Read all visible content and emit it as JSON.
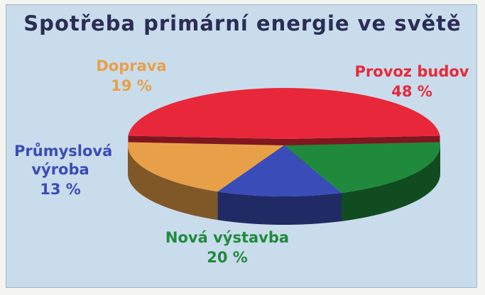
{
  "chart_data": {
    "type": "pie",
    "title": "Spotřeba primární energie ve světě",
    "categories": [
      "Provoz budov",
      "Nová výstavba",
      "Průmyslová výroba",
      "Doprava"
    ],
    "values": [
      48,
      20,
      13,
      19
    ],
    "value_labels": [
      "48 %",
      "20 %",
      "13 %",
      "19 %"
    ],
    "colors": [
      "#e8283a",
      "#1f8a3c",
      "#3a4cb8",
      "#e8a048"
    ],
    "exploded": [
      true,
      false,
      false,
      false
    ]
  }
}
